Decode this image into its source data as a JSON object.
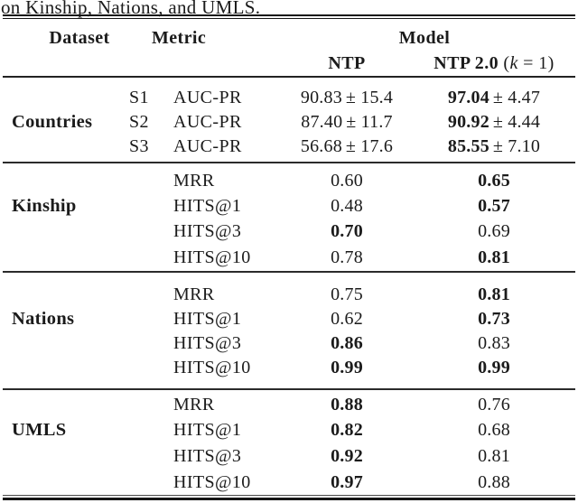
{
  "colors": {
    "ink": "#1b1b1b",
    "background": "#ffffff"
  },
  "caption": "on Kinship, Nations, and UMLS.",
  "header": {
    "dataset": "Dataset",
    "metric": "Metric",
    "model": "Model",
    "ntp": "NTP",
    "ntp2": {
      "bold": "NTP 2.0",
      "open": "(",
      "var": "k",
      "rest": " = 1)"
    }
  },
  "sections": [
    {
      "dataset": "Countries",
      "rows": [
        {
          "sub": "S1",
          "metric": "AUC-PR",
          "ntp": {
            "main": "90.83",
            "pm": "± 15.4",
            "bold": false
          },
          "ntp2": {
            "main": "97.04",
            "pm": "± 4.47",
            "bold": true
          }
        },
        {
          "sub": "S2",
          "metric": "AUC-PR",
          "ntp": {
            "main": "87.40",
            "pm": "± 11.7",
            "bold": false
          },
          "ntp2": {
            "main": "90.92",
            "pm": "± 4.44",
            "bold": true
          }
        },
        {
          "sub": "S3",
          "metric": "AUC-PR",
          "ntp": {
            "main": "56.68",
            "pm": "± 17.6",
            "bold": false
          },
          "ntp2": {
            "main": "85.55",
            "pm": "± 7.10",
            "bold": true
          }
        }
      ]
    },
    {
      "dataset": "Kinship",
      "rows": [
        {
          "sub": "",
          "metric": "MRR",
          "ntp": {
            "main": "0.60",
            "bold": false
          },
          "ntp2": {
            "main": "0.65",
            "bold": true
          }
        },
        {
          "sub": "",
          "metric": "HITS@1",
          "ntp": {
            "main": "0.48",
            "bold": false
          },
          "ntp2": {
            "main": "0.57",
            "bold": true
          }
        },
        {
          "sub": "",
          "metric": "HITS@3",
          "ntp": {
            "main": "0.70",
            "bold": true
          },
          "ntp2": {
            "main": "0.69",
            "bold": false
          }
        },
        {
          "sub": "",
          "metric": "HITS@10",
          "ntp": {
            "main": "0.78",
            "bold": false
          },
          "ntp2": {
            "main": "0.81",
            "bold": true
          }
        }
      ]
    },
    {
      "dataset": "Nations",
      "rows": [
        {
          "sub": "",
          "metric": "MRR",
          "ntp": {
            "main": "0.75",
            "bold": false
          },
          "ntp2": {
            "main": "0.81",
            "bold": true
          }
        },
        {
          "sub": "",
          "metric": "HITS@1",
          "ntp": {
            "main": "0.62",
            "bold": false
          },
          "ntp2": {
            "main": "0.73",
            "bold": true
          }
        },
        {
          "sub": "",
          "metric": "HITS@3",
          "ntp": {
            "main": "0.86",
            "bold": true
          },
          "ntp2": {
            "main": "0.83",
            "bold": false
          }
        },
        {
          "sub": "",
          "metric": "HITS@10",
          "ntp": {
            "main": "0.99",
            "bold": true
          },
          "ntp2": {
            "main": "0.99",
            "bold": true
          }
        }
      ]
    },
    {
      "dataset": "UMLS",
      "rows": [
        {
          "sub": "",
          "metric": "MRR",
          "ntp": {
            "main": "0.88",
            "bold": true
          },
          "ntp2": {
            "main": "0.76",
            "bold": false
          }
        },
        {
          "sub": "",
          "metric": "HITS@1",
          "ntp": {
            "main": "0.82",
            "bold": true
          },
          "ntp2": {
            "main": "0.68",
            "bold": false
          }
        },
        {
          "sub": "",
          "metric": "HITS@3",
          "ntp": {
            "main": "0.92",
            "bold": true
          },
          "ntp2": {
            "main": "0.81",
            "bold": false
          }
        },
        {
          "sub": "",
          "metric": "HITS@10",
          "ntp": {
            "main": "0.97",
            "bold": true
          },
          "ntp2": {
            "main": "0.88",
            "bold": false
          }
        }
      ]
    }
  ]
}
